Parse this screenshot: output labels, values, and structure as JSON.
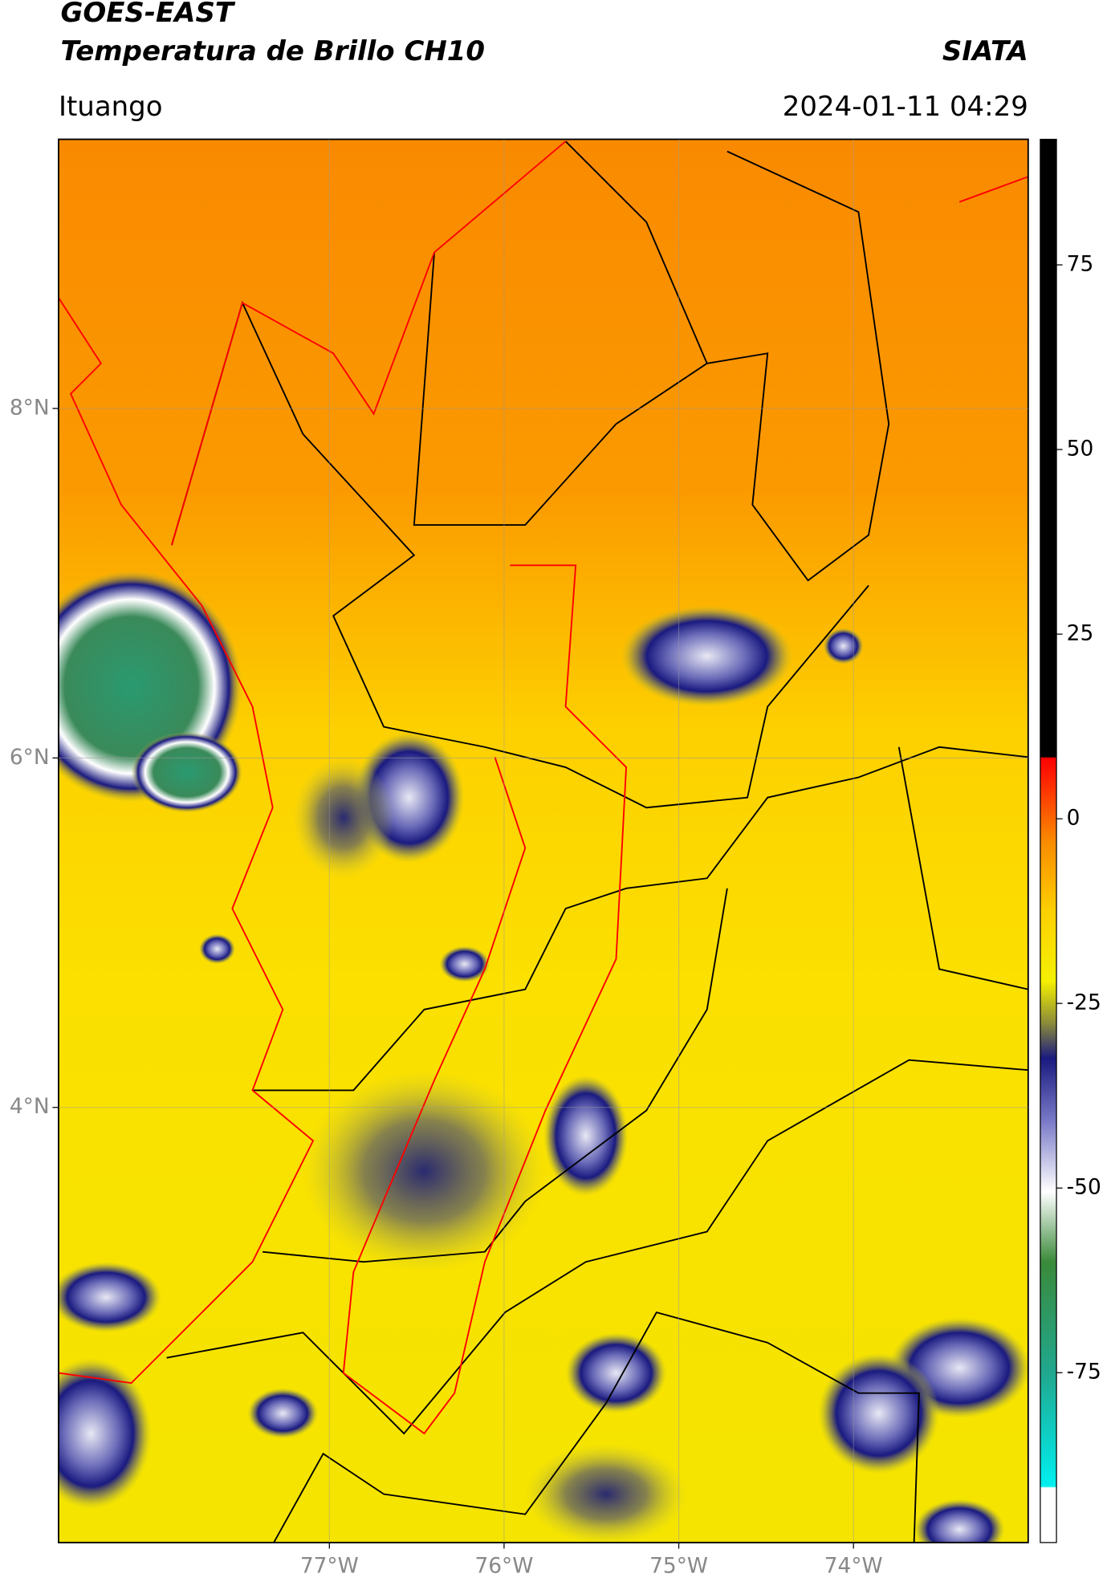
{
  "header": {
    "title": "GOES-EAST",
    "subtitle": "Temperatura de Brillo CH10",
    "source": "SIATA",
    "location": "Ituango",
    "datetime": "2024-01-11 04:29"
  },
  "map": {
    "xlim": [
      -78.55,
      -73.0
    ],
    "ylim": [
      1.51,
      9.54
    ],
    "xticks": [
      {
        "value": -77,
        "label": "77°W"
      },
      {
        "value": -76,
        "label": "76°W"
      },
      {
        "value": -75,
        "label": "75°W"
      },
      {
        "value": -74,
        "label": "74°W"
      }
    ],
    "yticks": [
      {
        "value": 8,
        "label": "8°N"
      },
      {
        "value": 6,
        "label": "6°N"
      },
      {
        "value": 4,
        "label": "4°N"
      }
    ],
    "grid": true
  },
  "colorbar": {
    "lim": [
      -98,
      92
    ],
    "ticks": [
      75,
      50,
      25,
      0,
      -25,
      -50,
      -75
    ]
  }
}
